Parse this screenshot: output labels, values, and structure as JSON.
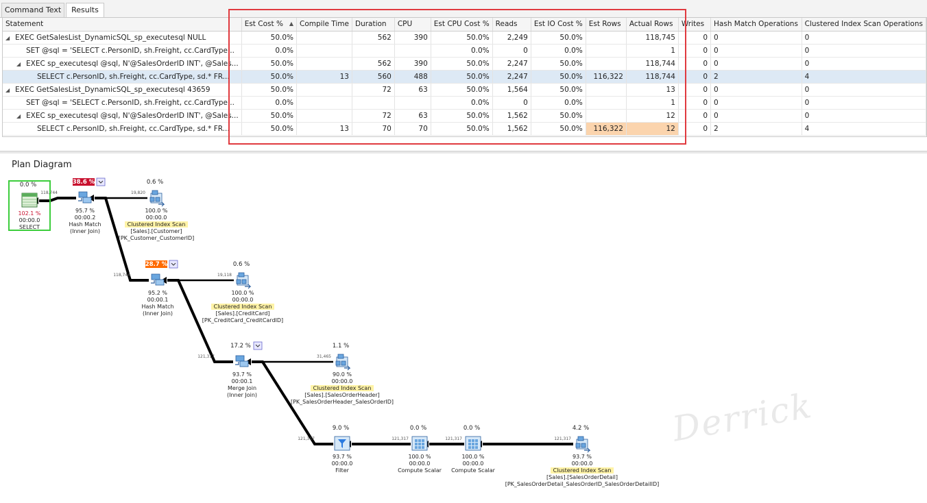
{
  "tabs": [
    {
      "label": "Command Text"
    },
    {
      "label": "Results"
    }
  ],
  "columns": [
    "Statement",
    "Est Cost %",
    "Compile Time",
    "Duration",
    "CPU",
    "Est CPU Cost %",
    "Reads",
    "Est IO Cost %",
    "Est Rows",
    "Actual Rows",
    "Writes",
    "Hash Match Operations",
    "Clustered Index Scan Operations"
  ],
  "rows": [
    {
      "tree": "◢",
      "indent": 0,
      "cells": [
        "EXEC GetSalesList_DynamicSQL_sp_executesql NULL",
        "50.0%",
        "",
        "562",
        "390",
        "50.0%",
        "2,249",
        "50.0%",
        "",
        "118,745",
        "0",
        "0",
        "0"
      ]
    },
    {
      "tree": "",
      "indent": 1,
      "cells": [
        "SET @sql = 'SELECT c.PersonID, sh.Freight, cc.CardType...",
        "0.0%",
        "",
        "",
        "",
        "0.0%",
        "0",
        "0.0%",
        "",
        "1",
        "0",
        "0",
        "0"
      ]
    },
    {
      "tree": "◢",
      "indent": 1,
      "cells": [
        "EXEC sp_executesql @sql, N'@SalesOrderID INT', @Sales...",
        "50.0%",
        "",
        "562",
        "390",
        "50.0%",
        "2,247",
        "50.0%",
        "",
        "118,744",
        "0",
        "0",
        "0"
      ]
    },
    {
      "tree": "",
      "indent": 2,
      "cells": [
        "SELECT c.PersonID, sh.Freight, cc.CardType, sd.* FR...",
        "50.0%",
        "13",
        "560",
        "488",
        "50.0%",
        "2,247",
        "50.0%",
        "116,322",
        "118,744",
        "0",
        "2",
        "4"
      ]
    },
    {
      "tree": "◢",
      "indent": 0,
      "cells": [
        "EXEC GetSalesList_DynamicSQL_sp_executesql 43659",
        "50.0%",
        "",
        "72",
        "63",
        "50.0%",
        "1,564",
        "50.0%",
        "",
        "13",
        "0",
        "0",
        "0"
      ]
    },
    {
      "tree": "",
      "indent": 1,
      "cells": [
        "SET @sql = 'SELECT c.PersonID, sh.Freight, cc.CardType...",
        "0.0%",
        "",
        "",
        "",
        "0.0%",
        "0",
        "0.0%",
        "",
        "1",
        "0",
        "0",
        "0"
      ]
    },
    {
      "tree": "◢",
      "indent": 1,
      "cells": [
        "EXEC sp_executesql @sql, N'@SalesOrderID INT', @Sales...",
        "50.0%",
        "",
        "72",
        "63",
        "50.0%",
        "1,562",
        "50.0%",
        "",
        "12",
        "0",
        "0",
        "0"
      ]
    },
    {
      "tree": "",
      "indent": 2,
      "cells": [
        "SELECT c.PersonID, sh.Freight, cc.CardType, sd.* FR...",
        "50.0%",
        "13",
        "70",
        "70",
        "50.0%",
        "1,562",
        "50.0%",
        "116,322",
        "12",
        "0",
        "2",
        "4"
      ]
    }
  ],
  "plan_title": "Plan Diagram",
  "watermark": "Derrick",
  "nodes": [
    {
      "id": "select",
      "type": "select",
      "cost": "0.0 %",
      "pct": "102.1 %",
      "time": "00:00.0",
      "name": "SELECT",
      "obj": "",
      "idx": ""
    },
    {
      "id": "hm1",
      "type": "hash",
      "cost": "38.6 %",
      "pct": "95.7 %",
      "time": "00:00.2",
      "name": "Hash Match",
      "obj": "(Inner Join)",
      "idx": ""
    },
    {
      "id": "cis1",
      "type": "scan",
      "cost": "0.6 %",
      "pct": "100.0 %",
      "time": "00:00.0",
      "name": "Clustered Index Scan",
      "obj": "[Sales].[Customer]",
      "idx": "[PK_Customer_CustomerID]"
    },
    {
      "id": "hm2",
      "type": "hash",
      "cost": "28.7 %",
      "pct": "95.2 %",
      "time": "00:00.1",
      "name": "Hash Match",
      "obj": "(Inner Join)",
      "idx": ""
    },
    {
      "id": "cis2",
      "type": "scan",
      "cost": "0.6 %",
      "pct": "100.0 %",
      "time": "00:00.0",
      "name": "Clustered Index Scan",
      "obj": "[Sales].[CreditCard]",
      "idx": "[PK_CreditCard_CreditCardID]"
    },
    {
      "id": "mj",
      "type": "merge",
      "cost": "17.2 %",
      "pct": "93.7 %",
      "time": "00:00.1",
      "name": "Merge Join",
      "obj": "(Inner Join)",
      "idx": ""
    },
    {
      "id": "cis3",
      "type": "scan",
      "cost": "1.1 %",
      "pct": "90.0 %",
      "time": "00:00.0",
      "name": "Clustered Index Scan",
      "obj": "[Sales].[SalesOrderHeader]",
      "idx": "[PK_SalesOrderHeader_SalesOrderID]"
    },
    {
      "id": "filter",
      "type": "filter",
      "cost": "9.0 %",
      "pct": "93.7 %",
      "time": "00:00.0",
      "name": "Filter",
      "obj": "",
      "idx": ""
    },
    {
      "id": "cs1",
      "type": "compute",
      "cost": "0.0 %",
      "pct": "100.0 %",
      "time": "00:00.0",
      "name": "Compute Scalar",
      "obj": "",
      "idx": ""
    },
    {
      "id": "cs2",
      "type": "compute",
      "cost": "0.0 %",
      "pct": "100.0 %",
      "time": "00:00.0",
      "name": "Compute Scalar",
      "obj": "",
      "idx": ""
    },
    {
      "id": "cis4",
      "type": "scan",
      "cost": "4.2 %",
      "pct": "93.7 %",
      "time": "00:00.0",
      "name": "Clustered Index Scan",
      "obj": "[Sales].[SalesOrderDetail]",
      "idx": "[PK_SalesOrderDetail_SalesOrderID_SalesOrderDetailID]"
    }
  ],
  "edges": [
    {
      "from": "hm1",
      "to": "select",
      "rows": "118,744"
    },
    {
      "from": "cis1",
      "to": "hm1",
      "rows": "19,820"
    },
    {
      "from": "hm2",
      "to": "hm1",
      "rows": "118,744"
    },
    {
      "from": "cis2",
      "to": "hm2",
      "rows": "19,118"
    },
    {
      "from": "mj",
      "to": "hm2",
      "rows": "121,317"
    },
    {
      "from": "cis3",
      "to": "mj",
      "rows": "31,465"
    },
    {
      "from": "filter",
      "to": "mj",
      "rows": "121,317"
    },
    {
      "from": "cs1",
      "to": "filter",
      "rows": "121,317"
    },
    {
      "from": "cs2",
      "to": "cs1",
      "rows": "121,317"
    },
    {
      "from": "cis4",
      "to": "cs2",
      "rows": "121,317"
    }
  ],
  "colors": {
    "selection": "#dde9f5",
    "highlight": "#fbd4ad",
    "red_box": "#e0393e",
    "cost_high": "#c8102e",
    "cost_mid": "#ff6a00",
    "select_border": "#3ccd3c",
    "label_bg": "#fff3a6"
  }
}
